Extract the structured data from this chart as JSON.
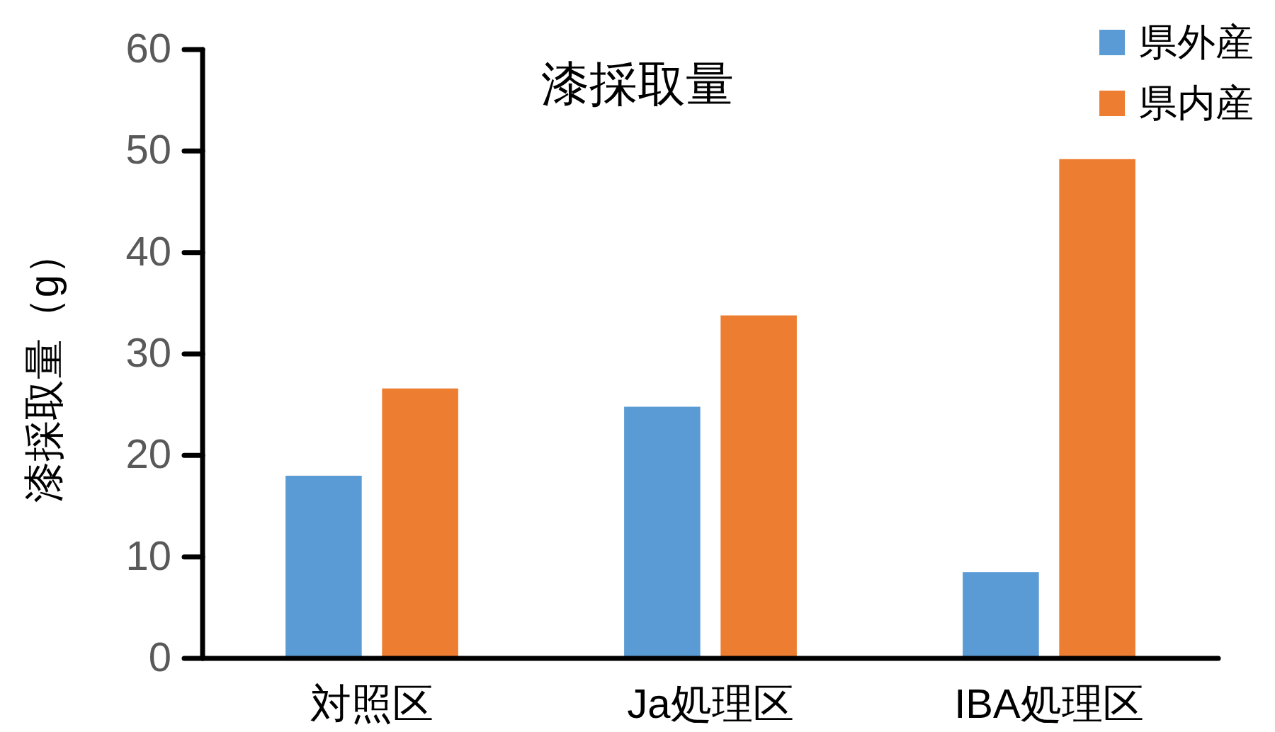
{
  "chart_data": {
    "type": "bar",
    "title": "漆採取量",
    "ylabel": "漆採取量（g）",
    "categories": [
      "対照区",
      "Ja処理区",
      "IBA処理区"
    ],
    "series": [
      {
        "name": "県外産",
        "color": "#5b9bd5",
        "values": [
          18,
          24.8,
          8.5
        ]
      },
      {
        "name": "県内産",
        "color": "#ed7d31",
        "values": [
          26.6,
          33.8,
          49.2
        ]
      }
    ],
    "ylim": [
      0,
      60
    ],
    "yticks": [
      0,
      10,
      20,
      30,
      40,
      50,
      60
    ],
    "legend": "top right"
  }
}
